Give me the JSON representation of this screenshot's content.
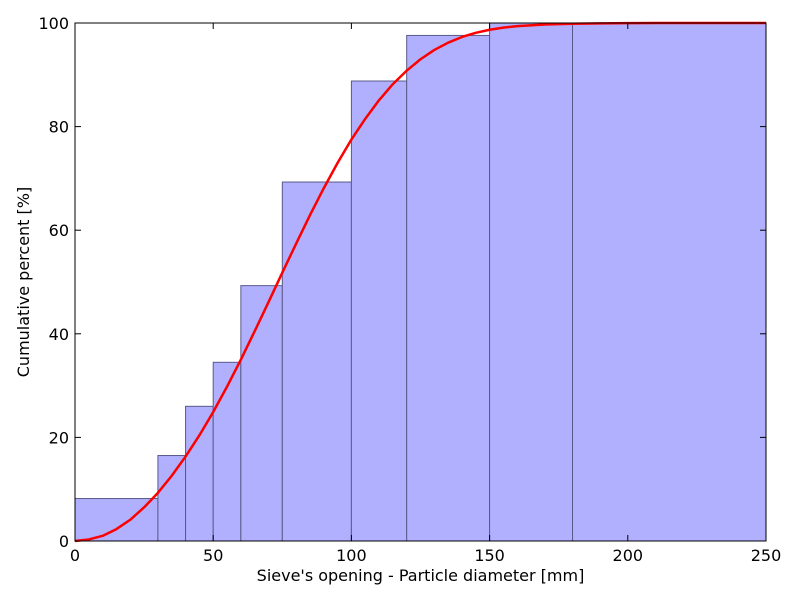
{
  "chart_data": {
    "type": "bar",
    "title": "",
    "xlabel": "Sieve's opening - Particle diameter [mm]",
    "ylabel": "Cumulative percent [%]",
    "xlim": [
      0,
      250
    ],
    "ylim": [
      0,
      100
    ],
    "x_ticks": [
      0,
      50,
      100,
      150,
      200,
      250
    ],
    "y_ticks": [
      0,
      20,
      40,
      60,
      80,
      100
    ],
    "grid": false,
    "legend": "none",
    "histogram": {
      "bin_edges": [
        0,
        30,
        40,
        50,
        60,
        75,
        100,
        120,
        150,
        180,
        250
      ],
      "cumulative_percent": [
        8.2,
        16.5,
        26.0,
        34.5,
        49.3,
        69.3,
        88.8,
        97.6,
        100,
        100
      ],
      "color": "#b0b0ff",
      "edge_color": "#5a5a8a"
    },
    "fit_curve": {
      "type": "line",
      "color": "#ff0000",
      "x": [
        0,
        5,
        10,
        15,
        20,
        25,
        30,
        35,
        40,
        45,
        50,
        55,
        60,
        65,
        70,
        75,
        80,
        85,
        90,
        95,
        100,
        105,
        110,
        115,
        120,
        125,
        130,
        135,
        140,
        145,
        150,
        155,
        160,
        170,
        180,
        190,
        200,
        210,
        220,
        230,
        240,
        250
      ],
      "y": [
        0,
        0.3,
        1.0,
        2.3,
        4.1,
        6.5,
        9.3,
        12.6,
        16.3,
        20.4,
        24.9,
        29.8,
        35.0,
        40.5,
        46.1,
        51.8,
        57.4,
        62.9,
        68.1,
        73.0,
        77.5,
        81.5,
        85.1,
        88.2,
        90.8,
        93.0,
        94.8,
        96.2,
        97.3,
        98.1,
        98.7,
        99.1,
        99.4,
        99.7,
        99.85,
        99.93,
        99.97,
        99.99,
        100,
        100,
        100,
        100
      ]
    }
  }
}
